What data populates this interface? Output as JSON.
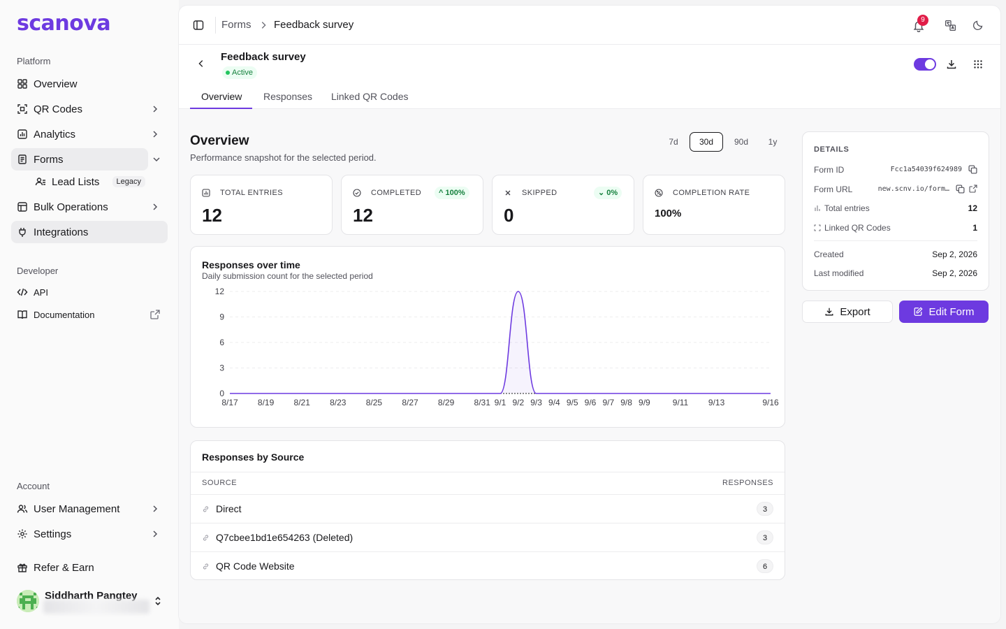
{
  "brand": {
    "logo_text": "scanova",
    "accent": "#6d3ae0"
  },
  "sidebar": {
    "platform_label": "Platform",
    "items": [
      {
        "label": "Overview",
        "icon": "layout-dashboard-icon"
      },
      {
        "label": "QR Codes",
        "icon": "qr-scan-icon"
      },
      {
        "label": "Analytics",
        "icon": "bar-chart-icon"
      },
      {
        "label": "Forms",
        "icon": "form-icon"
      },
      {
        "label": "Lead Lists",
        "icon": "user-list-icon",
        "badge": "Legacy"
      },
      {
        "label": "Bulk Operations",
        "icon": "layers-icon"
      },
      {
        "label": "Integrations",
        "icon": "plug-icon"
      }
    ],
    "developer_label": "Developer",
    "developer_items": [
      {
        "label": "API",
        "icon": "code-icon"
      },
      {
        "label": "Documentation",
        "icon": "book-icon"
      }
    ],
    "account_label": "Account",
    "account_items": [
      {
        "label": "User Management",
        "icon": "users-icon"
      },
      {
        "label": "Settings",
        "icon": "settings-icon"
      }
    ],
    "refer_label": "Refer & Earn",
    "user": {
      "name": "Siddharth Pangtey"
    }
  },
  "topbar": {
    "breadcrumb": [
      "Forms",
      "Feedback survey"
    ],
    "notification_count": "9"
  },
  "form": {
    "title": "Feedback survey",
    "status": "Active",
    "enabled": true,
    "tabs": [
      "Overview",
      "Responses",
      "Linked QR Codes"
    ],
    "active_tab": "Overview"
  },
  "overview": {
    "title": "Overview",
    "subtitle": "Performance snapshot for the selected period.",
    "periods": [
      "7d",
      "30d",
      "90d",
      "1y"
    ],
    "selected_period": "30d",
    "stats": {
      "total_entries": {
        "label": "TOTAL ENTRIES",
        "value": "12"
      },
      "completed": {
        "label": "COMPLETED",
        "value": "12",
        "trend": "100%"
      },
      "skipped": {
        "label": "SKIPPED",
        "value": "0",
        "trend": "0%"
      },
      "completion_rate": {
        "label": "COMPLETION RATE",
        "value": "100%"
      }
    }
  },
  "responses_chart": {
    "title": "Responses over time",
    "subtitle": "Daily submission count for the selected period"
  },
  "chart_data": {
    "type": "area",
    "title": "Responses over time",
    "xlabel": "",
    "ylabel": "",
    "x_ticks": [
      "8/17",
      "8/19",
      "8/21",
      "8/23",
      "8/25",
      "8/27",
      "8/29",
      "8/31",
      "9/1",
      "9/2",
      "9/3",
      "9/4",
      "9/5",
      "9/6",
      "9/7",
      "9/8",
      "9/9",
      "9/11",
      "9/13",
      "9/16"
    ],
    "y_ticks": [
      0,
      3,
      6,
      9,
      12
    ],
    "ylim": [
      0,
      12
    ],
    "grid": true,
    "series": [
      {
        "x": [
          "8/17",
          "8/18",
          "8/19",
          "8/20",
          "8/21",
          "8/22",
          "8/23",
          "8/24",
          "8/25",
          "8/26",
          "8/27",
          "8/28",
          "8/29",
          "8/30",
          "8/31",
          "9/1",
          "9/2",
          "9/3",
          "9/4",
          "9/5",
          "9/6",
          "9/7",
          "9/8",
          "9/9",
          "9/10",
          "9/11",
          "9/12",
          "9/13",
          "9/14",
          "9/15",
          "9/16"
        ],
        "values": [
          0,
          0,
          0,
          0,
          0,
          0,
          0,
          0,
          0,
          0,
          0,
          0,
          0,
          0,
          0,
          0,
          12,
          0,
          0,
          0,
          0,
          0,
          0,
          0,
          0,
          0,
          0,
          0,
          0,
          0,
          0
        ]
      }
    ],
    "line_color": "#6d3ae0"
  },
  "sources": {
    "title": "Responses by Source",
    "columns": [
      "SOURCE",
      "RESPONSES"
    ],
    "rows": [
      {
        "source": "Direct",
        "responses": "3"
      },
      {
        "source": "Q7cbee1bd1e654263 (Deleted)",
        "responses": "3"
      },
      {
        "source": "QR Code Website",
        "responses": "6"
      }
    ]
  },
  "details": {
    "heading": "DETAILS",
    "form_id_label": "Form ID",
    "form_id": "Fcc1a54039f624989",
    "form_url_label": "Form URL",
    "form_url": "new.scnv.io/form…",
    "total_entries_label": "Total entries",
    "total_entries": "12",
    "linked_qr_label": "Linked QR Codes",
    "linked_qr": "1",
    "created_label": "Created",
    "created": "Sep 2, 2026",
    "modified_label": "Last modified",
    "modified": "Sep 2, 2026"
  },
  "actions": {
    "export": "Export",
    "edit": "Edit Form"
  }
}
